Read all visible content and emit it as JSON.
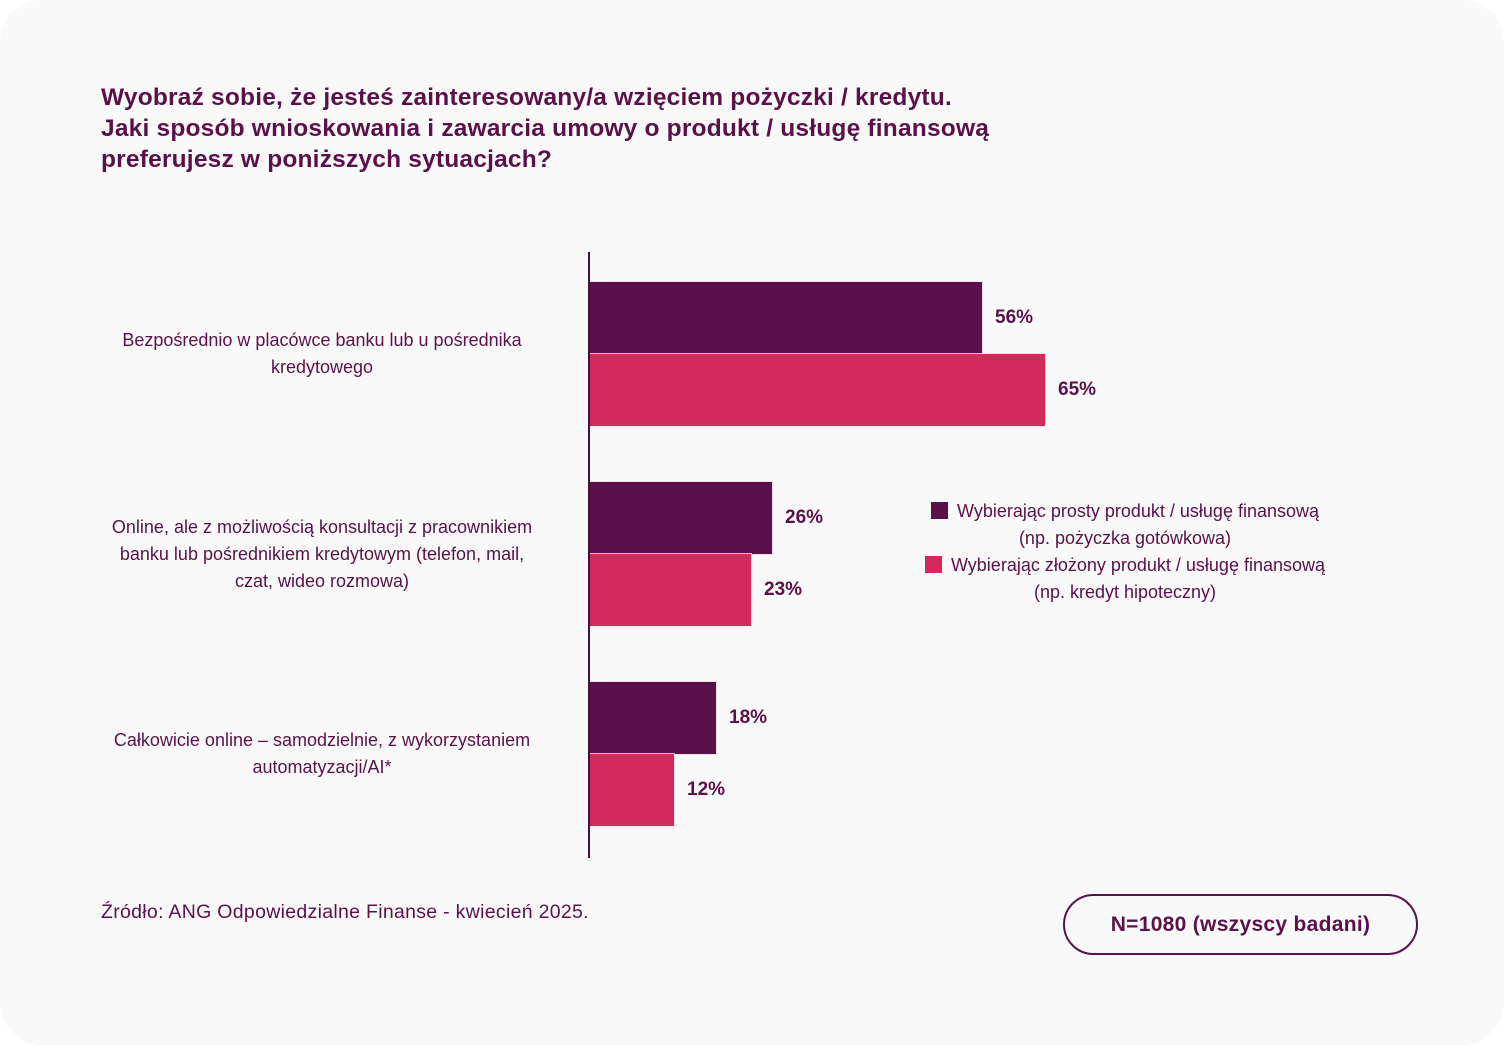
{
  "title": "Wyobraź sobie, że jesteś zainteresowany/a wzięciem pożyczki / kredytu.\nJaki sposób wnioskowania i zawarcia umowy o produkt / usługę finansową\npreferujesz w poniższych sytuacjach?",
  "colors": {
    "primary_dark_purple": "#5A1149",
    "accent_pink": "#D42A5B",
    "axis": "#470E3B",
    "card_background": "#FAF9FA"
  },
  "chart_data": {
    "type": "bar",
    "orientation": "horizontal",
    "categories": [
      "Bezpośrednio w placówce banku lub u pośrednika\nkredytowego",
      "Online, ale z możliwością konsultacji z pracownikiem\nbanku lub pośrednikiem kredytowym (telefon, mail,\nczat, wideo rozmowa)",
      "Całkowicie online – samodzielnie, z wykorzystaniem\nautomatyzacji/AI*"
    ],
    "series": [
      {
        "name": "Wybierając prosty produkt / usługę finansową (np. pożyczka gotówkowa)",
        "slug": "prosty-produkt",
        "color": "#5A1149",
        "values": [
          56,
          26,
          18
        ]
      },
      {
        "name": "Wybierając złożony produkt / usługę finansową (np. kredyt hipoteczny)",
        "slug": "zlozony-produkt",
        "color": "#D42A5B",
        "values": [
          65,
          23,
          12
        ]
      }
    ],
    "value_suffix": "%",
    "xlim": [
      0,
      100
    ],
    "grid": false,
    "legend_position": "right-middle"
  },
  "legend": {
    "items": [
      {
        "line1": "Wybierając prosty produkt / usługę finansową",
        "line2": "(np. pożyczka gotówkowa)",
        "color": "#5A1149"
      },
      {
        "line1": "Wybierając złożony produkt / usługę finansową",
        "line2": "(np. kredyt hipoteczny)",
        "color": "#D42A5B"
      }
    ]
  },
  "footer": {
    "source": "Źródło: ANG Odpowiedzialne Finanse - kwiecień 2025.",
    "badge": "N=1080 (wszyscy badani)"
  }
}
